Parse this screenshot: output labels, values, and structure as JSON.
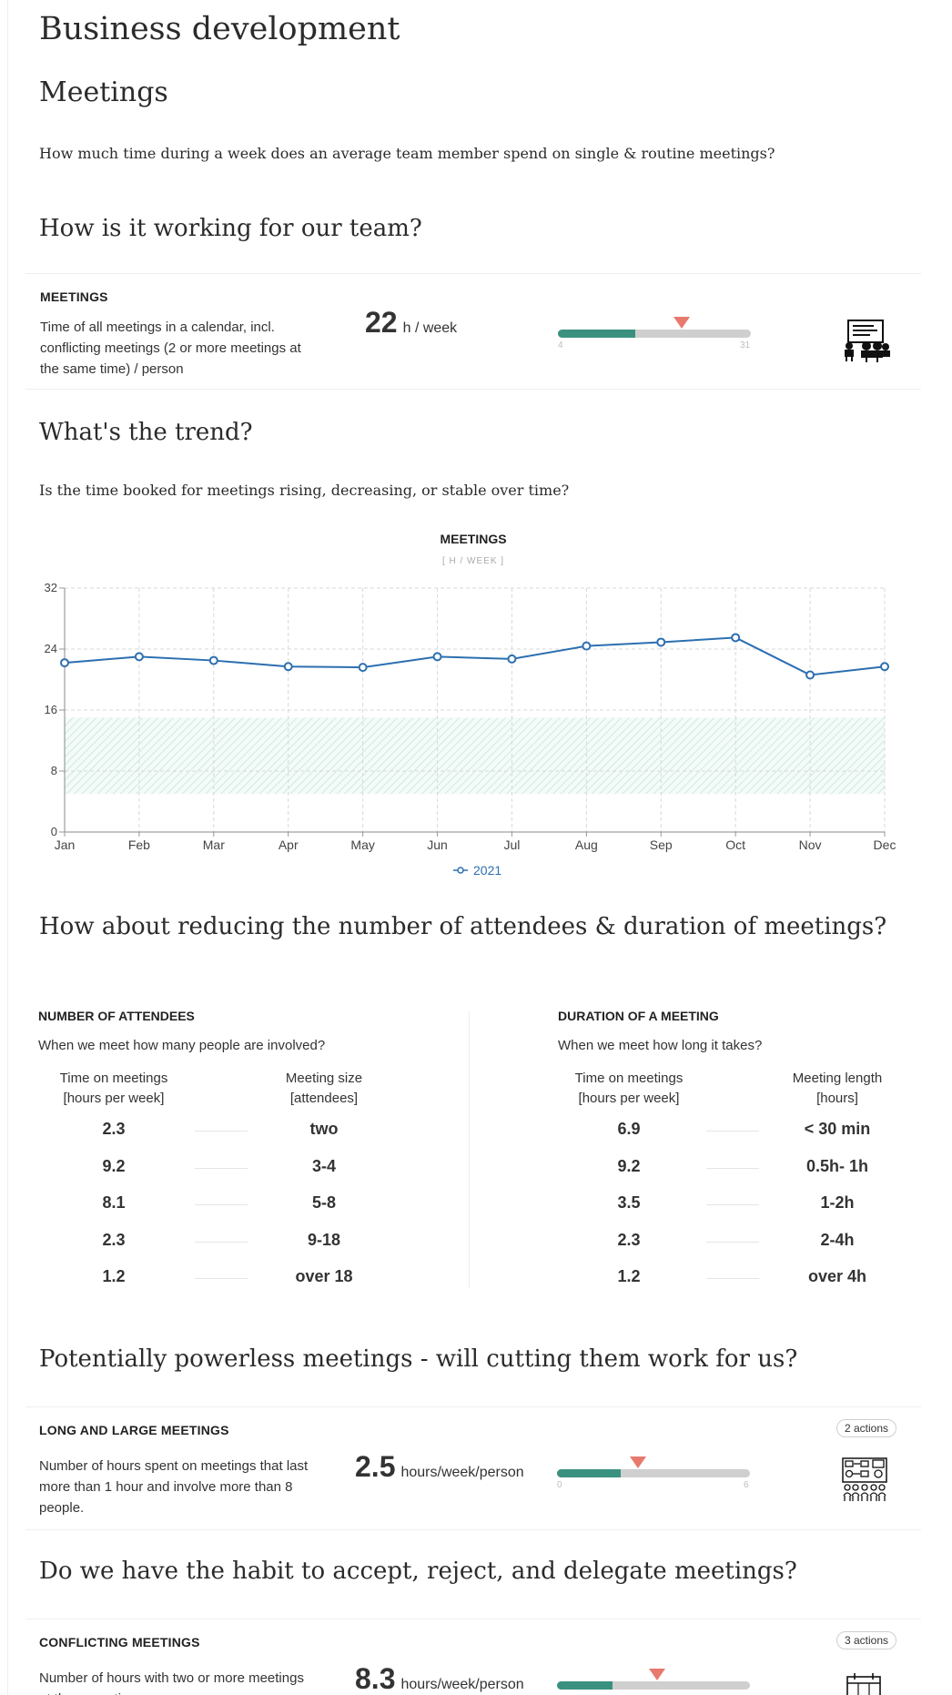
{
  "page": {
    "title": "Business development",
    "section_title": "Meetings",
    "intro": "How much time during a week does an average team member spend on single & routine meetings?"
  },
  "working": {
    "heading": "How is it working for our team?",
    "kpi": {
      "label": "MEETINGS",
      "description": "Time of all meetings in a calendar, incl. conflicting meetings (2 or more meetings at the same time) / person",
      "value": "22",
      "unit": "h / week",
      "bar_min": "4",
      "bar_max": "31",
      "bar_fill_fraction": 0.4,
      "marker_fraction": 0.64,
      "icon": "presentation-meeting-icon"
    }
  },
  "trend": {
    "heading": "What's the trend?",
    "question": "Is the time booked for meetings rising, decreasing, or stable over time?"
  },
  "chart_data": {
    "type": "line",
    "title": "MEETINGS",
    "subtitle": "[ H / WEEK ]",
    "categories": [
      "Jan",
      "Feb",
      "Mar",
      "Apr",
      "May",
      "Jun",
      "Jul",
      "Aug",
      "Sep",
      "Oct",
      "Nov",
      "Dec"
    ],
    "series": [
      {
        "name": "2021",
        "values": [
          22.2,
          23.0,
          22.5,
          21.7,
          21.6,
          23.0,
          22.7,
          24.4,
          24.9,
          25.5,
          20.6,
          21.7
        ]
      }
    ],
    "yticks": [
      0,
      8,
      16,
      24,
      32
    ],
    "ylim": [
      0,
      32
    ],
    "target_band": [
      5,
      15
    ],
    "grid": true,
    "legend": "bottom-center"
  },
  "reduce": {
    "heading": "How about reducing the number of attendees & duration of meetings?",
    "attendees": {
      "title": "NUMBER OF ATTENDEES",
      "question": "When we meet how many people are involved?",
      "col1_line1": "Time on meetings",
      "col1_line2": "[hours per week]",
      "col2_line1": "Meeting size",
      "col2_line2": "[attendees]",
      "rows": [
        {
          "hours": "2.3",
          "label": "two"
        },
        {
          "hours": "9.2",
          "label": "3-4"
        },
        {
          "hours": "8.1",
          "label": "5-8"
        },
        {
          "hours": "2.3",
          "label": "9-18"
        },
        {
          "hours": "1.2",
          "label": "over 18"
        }
      ]
    },
    "duration": {
      "title": "DURATION OF A MEETING",
      "question": "When we meet how long it takes?",
      "col1_line1": "Time on meetings",
      "col1_line2": "[hours per week]",
      "col2_line1": "Meeting length",
      "col2_line2": "[hours]",
      "rows": [
        {
          "hours": "6.9",
          "label": "< 30 min"
        },
        {
          "hours": "9.2",
          "label": "0.5h- 1h"
        },
        {
          "hours": "3.5",
          "label": "1-2h"
        },
        {
          "hours": "2.3",
          "label": "2-4h"
        },
        {
          "hours": "1.2",
          "label": "over 4h"
        }
      ]
    }
  },
  "powerless": {
    "heading": "Potentially powerless meetings - will cutting them work for us?",
    "kpi": {
      "label": "LONG AND LARGE MEETINGS",
      "badge": "2 actions",
      "description": "Number of hours spent on meetings that last more than 1 hour and involve more than 8 people.",
      "value": "2.5",
      "unit": "hours/week/person",
      "bar_min": "0",
      "bar_max": "6",
      "bar_fill_fraction": 0.33,
      "marker_fraction": 0.42,
      "icon": "flowchart-team-icon"
    }
  },
  "habit": {
    "heading": "Do we have the habit to accept, reject, and delegate meetings?",
    "kpi": {
      "label": "CONFLICTING MEETINGS",
      "badge": "3 actions",
      "description": "Number of hours with two or more meetings at the same time",
      "value": "8.3",
      "unit": "hours/week/person",
      "bar_fill_fraction": 0.29,
      "marker_fraction": 0.52,
      "icon": "calendar-conflict-icon"
    }
  }
}
